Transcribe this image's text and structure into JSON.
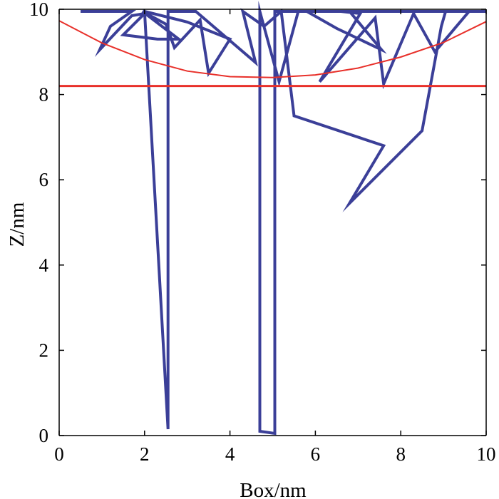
{
  "chart_data": {
    "type": "line",
    "title": "",
    "xlabel": "Box/nm",
    "ylabel": "Z/nm",
    "xlim": [
      0,
      10
    ],
    "ylim": [
      0,
      10
    ],
    "xticks": [
      "0",
      "2",
      "4",
      "6",
      "8",
      "10"
    ],
    "yticks": [
      "0",
      "2",
      "4",
      "6",
      "8",
      "10"
    ],
    "grid": false,
    "colors": {
      "trajectory": "#3b3f98",
      "boundary": "#e8302a",
      "axis": "#000000"
    },
    "series": [
      {
        "style": "trajectory",
        "points": [
          [
            0.5,
            9.95
          ],
          [
            1.7,
            9.95
          ],
          [
            1.2,
            9.6
          ],
          [
            0.95,
            9.05
          ],
          [
            1.7,
            9.85
          ],
          [
            2.0,
            9.9
          ],
          [
            1.5,
            9.4
          ],
          [
            2.3,
            9.3
          ],
          [
            2.8,
            9.3
          ],
          [
            1.95,
            9.95
          ],
          [
            2.5,
            9.65
          ],
          [
            2.7,
            9.1
          ],
          [
            3.3,
            9.75
          ],
          [
            3.5,
            8.5
          ],
          [
            4.0,
            9.3
          ],
          [
            3.0,
            9.7
          ],
          [
            2.0,
            9.95
          ],
          [
            2.55,
            0.15
          ],
          [
            2.55,
            9.95
          ],
          [
            3.2,
            9.95
          ],
          [
            3.9,
            9.35
          ],
          [
            4.6,
            8.75
          ],
          [
            4.3,
            9.95
          ],
          [
            4.8,
            9.6
          ],
          [
            5.2,
            9.95
          ],
          [
            5.5,
            7.5
          ],
          [
            7.6,
            6.8
          ],
          [
            6.8,
            5.45
          ],
          [
            8.5,
            7.15
          ],
          [
            8.95,
            9.6
          ],
          [
            9.05,
            9.95
          ],
          [
            9.6,
            9.95
          ],
          [
            8.8,
            9.0
          ],
          [
            8.3,
            9.9
          ],
          [
            7.6,
            8.25
          ],
          [
            7.4,
            9.8
          ],
          [
            6.1,
            8.3
          ],
          [
            7.05,
            9.9
          ],
          [
            6.6,
            9.95
          ],
          [
            5.6,
            9.95
          ],
          [
            5.15,
            8.3
          ],
          [
            4.7,
            9.95
          ],
          [
            4.7,
            0.1
          ],
          [
            5.05,
            0.05
          ],
          [
            5.05,
            9.95
          ],
          [
            6.8,
            9.95
          ],
          [
            7.55,
            9.05
          ],
          [
            6.5,
            9.55
          ],
          [
            5.8,
            9.95
          ],
          [
            10.0,
            9.95
          ]
        ]
      },
      {
        "style": "boundary",
        "name": "",
        "points": [
          [
            0.0,
            9.73
          ],
          [
            1.0,
            9.21
          ],
          [
            2.0,
            8.82
          ],
          [
            3.0,
            8.55
          ],
          [
            4.0,
            8.42
          ],
          [
            5.0,
            8.4
          ],
          [
            6.0,
            8.46
          ],
          [
            7.0,
            8.62
          ],
          [
            8.0,
            8.88
          ],
          [
            9.0,
            9.22
          ],
          [
            10.0,
            9.71
          ]
        ]
      },
      {
        "style": "boundary",
        "name": "",
        "points": [
          [
            0.0,
            8.2
          ],
          [
            10.0,
            8.2
          ]
        ]
      }
    ]
  }
}
